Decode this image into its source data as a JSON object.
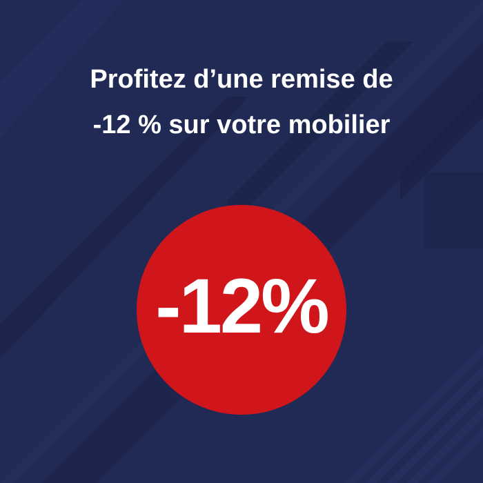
{
  "headline": {
    "line1": "Profitez d’une remise de",
    "line2": "-12 % sur votre mobilier"
  },
  "badge": {
    "label": "-12%"
  },
  "colors": {
    "background": "#202a55",
    "badge": "#d0161b",
    "text": "#ffffff"
  }
}
